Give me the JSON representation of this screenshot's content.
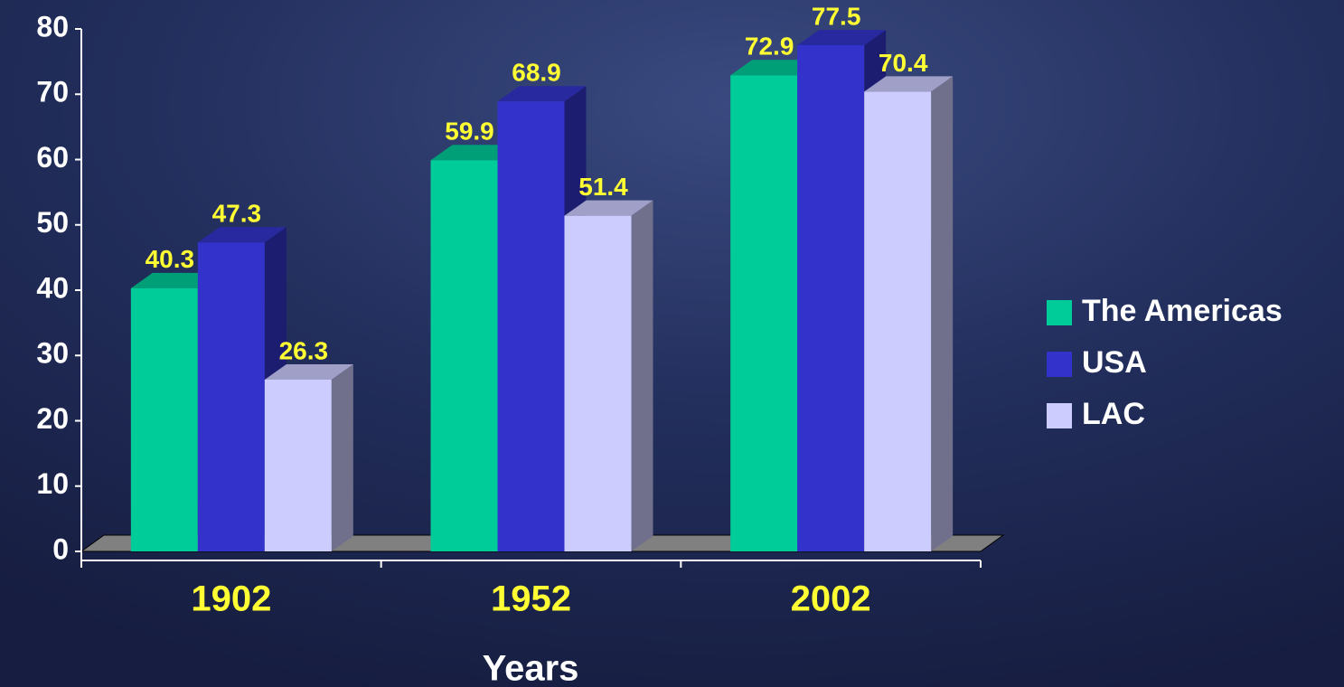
{
  "chart_data": {
    "type": "bar3d",
    "x_label": "Years",
    "categories": [
      "1902",
      "1952",
      "2002"
    ],
    "series": [
      {
        "name": "The Americas",
        "color": "#00cc99",
        "values": [
          40.3,
          59.9,
          72.9
        ]
      },
      {
        "name": "USA",
        "color": "#3333cc",
        "values": [
          47.3,
          68.9,
          77.5
        ]
      },
      {
        "name": "LAC",
        "color": "#ccccff",
        "values": [
          26.3,
          51.4,
          70.4
        ]
      }
    ],
    "ylim": [
      0,
      80
    ],
    "yticks": [
      0,
      10,
      20,
      30,
      40,
      50,
      60,
      70,
      80
    ],
    "legend": "right",
    "grid": false
  }
}
